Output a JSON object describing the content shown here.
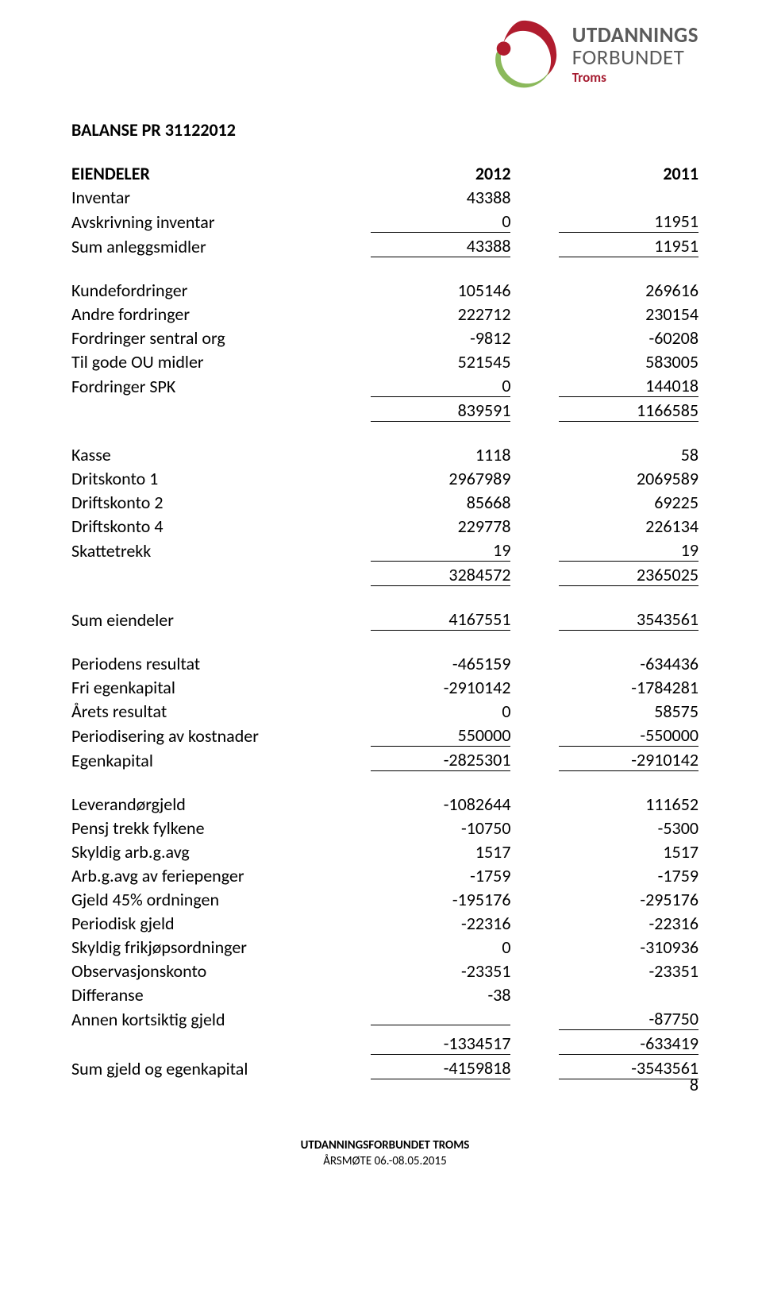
{
  "logo": {
    "line1": "UTDANNINGS",
    "line2": "FORBUNDET",
    "sub": "Troms",
    "colors": {
      "red": "#b01c2e",
      "green": "#8bb95b",
      "grey": "#5b5b5b"
    }
  },
  "title": "BALANSE PR 31122012",
  "headers": {
    "col1": "2012",
    "col2": "2011"
  },
  "sections": [
    {
      "head": "EIENDELER",
      "rows": [
        {
          "label": "Inventar",
          "c1": "43388",
          "c2": ""
        },
        {
          "label": "Avskrivning inventar",
          "c1": "0",
          "c2": "11951",
          "underline": true
        },
        {
          "label": "Sum anleggsmidler",
          "c1": "43388",
          "c2": "11951",
          "underline": true
        }
      ]
    },
    {
      "rows": [
        {
          "label": "Kundefordringer",
          "c1": "105146",
          "c2": "269616"
        },
        {
          "label": "Andre fordringer",
          "c1": "222712",
          "c2": "230154"
        },
        {
          "label": "Fordringer sentral org",
          "c1": "-9812",
          "c2": "-60208"
        },
        {
          "label": "Til gode OU midler",
          "c1": "521545",
          "c2": "583005"
        },
        {
          "label": "Fordringer SPK",
          "c1": "0",
          "c2": "144018",
          "underline": true
        },
        {
          "label": "",
          "c1": "839591",
          "c2": "1166585",
          "underline": true
        }
      ]
    },
    {
      "rows": [
        {
          "label": "Kasse",
          "c1": "1118",
          "c2": "58"
        },
        {
          "label": "Dritskonto 1",
          "c1": "2967989",
          "c2": "2069589"
        },
        {
          "label": "Driftskonto 2",
          "c1": "85668",
          "c2": "69225"
        },
        {
          "label": "Driftskonto 4",
          "c1": "229778",
          "c2": "226134"
        },
        {
          "label": "Skattetrekk",
          "c1": "19",
          "c2": "19",
          "underline": true
        },
        {
          "label": "",
          "c1": "3284572",
          "c2": "2365025",
          "underline": true
        }
      ]
    },
    {
      "rows": [
        {
          "label": "Sum eiendeler",
          "c1": "4167551",
          "c2": "3543561",
          "underline": true
        }
      ]
    },
    {
      "rows": [
        {
          "label": "Periodens resultat",
          "c1": "-465159",
          "c2": "-634436"
        },
        {
          "label": "Fri egenkapital",
          "c1": "-2910142",
          "c2": "-1784281"
        },
        {
          "label": "Årets resultat",
          "c1": "0",
          "c2": "58575"
        },
        {
          "label": "Periodisering av kostnader",
          "c1": "550000",
          "c2": "-550000",
          "underline": true
        },
        {
          "label": "Egenkapital",
          "c1": "-2825301",
          "c2": "-2910142",
          "underline": true
        }
      ]
    },
    {
      "rows": [
        {
          "label": "Leverandørgjeld",
          "c1": "-1082644",
          "c2": "111652"
        },
        {
          "label": "Pensj trekk fylkene",
          "c1": "-10750",
          "c2": "-5300"
        },
        {
          "label": "Skyldig arb.g.avg",
          "c1": "1517",
          "c2": "1517"
        },
        {
          "label": "Arb.g.avg av feriepenger",
          "c1": "-1759",
          "c2": "-1759"
        },
        {
          "label": "Gjeld 45% ordningen",
          "c1": "-195176",
          "c2": "-295176"
        },
        {
          "label": "Periodisk gjeld",
          "c1": "-22316",
          "c2": "-22316"
        },
        {
          "label": "Skyldig frikjøpsordninger",
          "c1": "0",
          "c2": "-310936"
        },
        {
          "label": "Observasjonskonto",
          "c1": "-23351",
          "c2": "-23351"
        },
        {
          "label": "Differanse",
          "c1": "-38",
          "c2": ""
        },
        {
          "label": "Annen kortsiktig gjeld",
          "c1": "",
          "c2": "-87750",
          "underline": true
        },
        {
          "label": "",
          "c1": "-1334517",
          "c2": "-633419",
          "underline": true
        },
        {
          "label": "Sum gjeld og egenkapital",
          "c1": "-4159818",
          "c2": "-3543561",
          "underline": true
        }
      ]
    }
  ],
  "footer": {
    "line1": "UTDANNINGSFORBUNDET TROMS",
    "line2": "ÅRSMØTE 06.-08.05.2015"
  },
  "page_number": "8"
}
